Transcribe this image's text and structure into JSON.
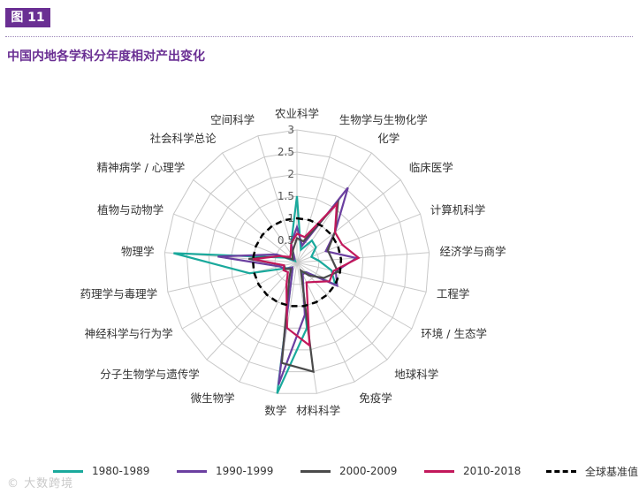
{
  "figure_label": "图 11",
  "title": "中国内地各学科分年度相对产出变化",
  "watermark": "© 大数跨境",
  "colors": {
    "accent": "#6a2f93",
    "grid": "#c8c8c8"
  },
  "chart_data": {
    "type": "radar",
    "title": "中国内地各学科分年度相对产出变化",
    "categories": [
      "农业科学",
      "生物学与生物化学",
      "化学",
      "临床医学",
      "计算机科学",
      "经济学与商学",
      "工程学",
      "环境 / 生态学",
      "地球科学",
      "免疫学",
      "材料科学",
      "数学",
      "微生物学",
      "分子生物学与遗传学",
      "神经科学与行为学",
      "药理学与毒理学",
      "物理学",
      "植物与动物学",
      "精神病学 / 心理学",
      "社会科学总论",
      "空间科学"
    ],
    "radial_ticks": [
      "0.5",
      "1",
      "1.5",
      "2",
      "2.5",
      "3"
    ],
    "rlim": [
      0,
      3
    ],
    "grid": true,
    "legend_position": "bottom",
    "series": [
      {
        "name": "1980-1989",
        "color": "#1aa99c",
        "style": "solid",
        "values": [
          1.5,
          0.3,
          0.6,
          0.55,
          0.35,
          0.5,
          0.8,
          1.0,
          0.3,
          0.25,
          1.5,
          3.0,
          0.25,
          0.15,
          0.25,
          1.1,
          2.8,
          0.3,
          0.05,
          0.1,
          0.45
        ]
      },
      {
        "name": "1990-1999",
        "color": "#6b3fa0",
        "style": "solid",
        "values": [
          0.8,
          0.4,
          2.05,
          1.1,
          0.7,
          1.35,
          0.9,
          1.05,
          0.3,
          0.3,
          1.2,
          2.8,
          0.25,
          0.15,
          0.3,
          0.4,
          1.8,
          0.5,
          0.1,
          0.1,
          0.45
        ]
      },
      {
        "name": "2000-2009",
        "color": "#4a4a4a",
        "style": "solid",
        "values": [
          0.55,
          0.5,
          1.65,
          1.1,
          0.75,
          0.8,
          0.95,
          0.7,
          0.4,
          0.2,
          2.5,
          2.3,
          0.4,
          0.2,
          0.3,
          0.3,
          1.1,
          0.4,
          0.12,
          0.18,
          0.3
        ]
      },
      {
        "name": "2010-2018",
        "color": "#c2185b",
        "style": "solid",
        "values": [
          0.65,
          0.6,
          1.6,
          1.1,
          1.1,
          1.4,
          0.85,
          0.85,
          0.6,
          0.5,
          1.9,
          1.5,
          0.55,
          0.3,
          0.35,
          0.3,
          1.0,
          0.4,
          0.2,
          0.25,
          0.45
        ]
      },
      {
        "name": "全球基准值",
        "color": "#000000",
        "style": "dashed",
        "values": [
          1,
          1,
          1,
          1,
          1,
          1,
          1,
          1,
          1,
          1,
          1,
          1,
          1,
          1,
          1,
          1,
          1,
          1,
          1,
          1,
          1
        ]
      }
    ]
  }
}
